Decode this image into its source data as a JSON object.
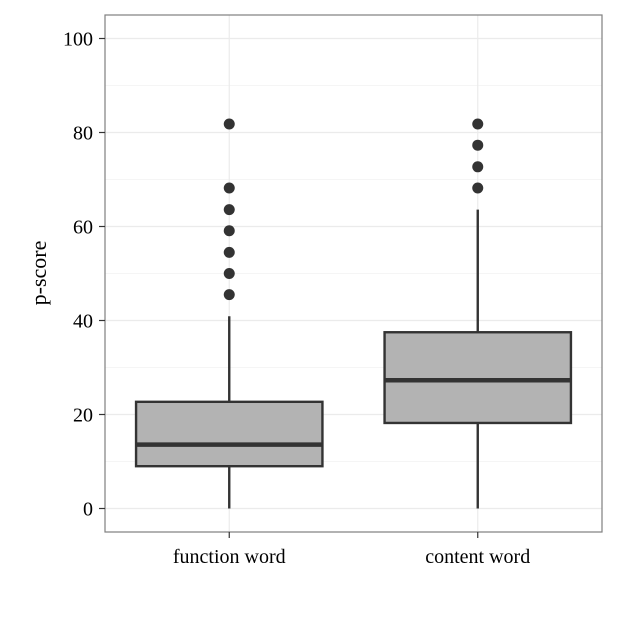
{
  "chart_data": {
    "type": "boxplot",
    "title": "",
    "xlabel": "",
    "ylabel": "p-score",
    "ylim": [
      -5,
      105
    ],
    "yticks": [
      0,
      20,
      40,
      60,
      80,
      100
    ],
    "grid": true,
    "legend": "none",
    "colors": {
      "box_fill": "#b3b3b3",
      "box_line": "#333333",
      "outlier": "#333333",
      "grid_major": "#ebebeb",
      "grid_minor": "#f5f5f5",
      "panel_border": "#7f7f7f",
      "tick_mark": "#333333"
    },
    "categories": [
      "function word",
      "content word"
    ],
    "boxes": [
      {
        "category": "function word",
        "lower_whisker": 0,
        "q1": 9,
        "median": 13.6,
        "q3": 22.7,
        "upper_whisker": 40.9,
        "outliers": [
          45.5,
          50,
          54.5,
          59.1,
          63.6,
          68.2,
          81.8
        ]
      },
      {
        "category": "content word",
        "lower_whisker": 0,
        "q1": 18.2,
        "median": 27.3,
        "q3": 37.5,
        "upper_whisker": 63.6,
        "outliers": [
          68.2,
          72.7,
          77.3,
          81.8
        ]
      }
    ]
  }
}
